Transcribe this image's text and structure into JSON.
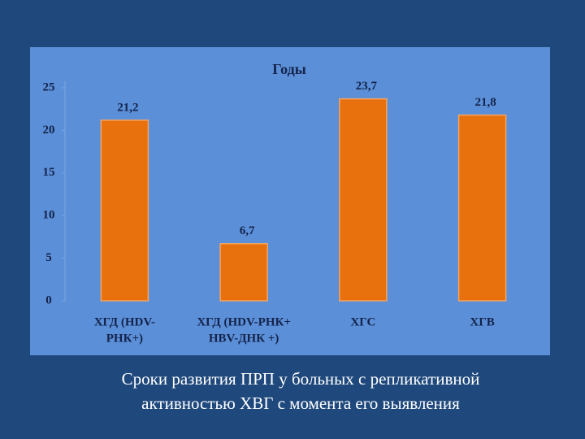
{
  "chart_data": {
    "type": "bar",
    "title": "Годы",
    "categories": [
      [
        "ХГД (HDV-",
        "РНК+)"
      ],
      [
        "ХГД (HDV-РНК+",
        "HBV-ДНК +)"
      ],
      [
        "ХГС"
      ],
      [
        "ХГВ"
      ]
    ],
    "values": [
      21.2,
      6.7,
      23.7,
      21.8
    ],
    "value_labels": [
      "21,2",
      "6,7",
      "23,7",
      "21,8"
    ],
    "color": "#e8710e",
    "ylim": [
      0,
      25
    ],
    "yticks": [
      0,
      5,
      10,
      15,
      20,
      25
    ]
  },
  "caption": [
    "Сроки развития ПРП у больных с репликативной",
    "активностью ХВГ с момента его выявления"
  ]
}
